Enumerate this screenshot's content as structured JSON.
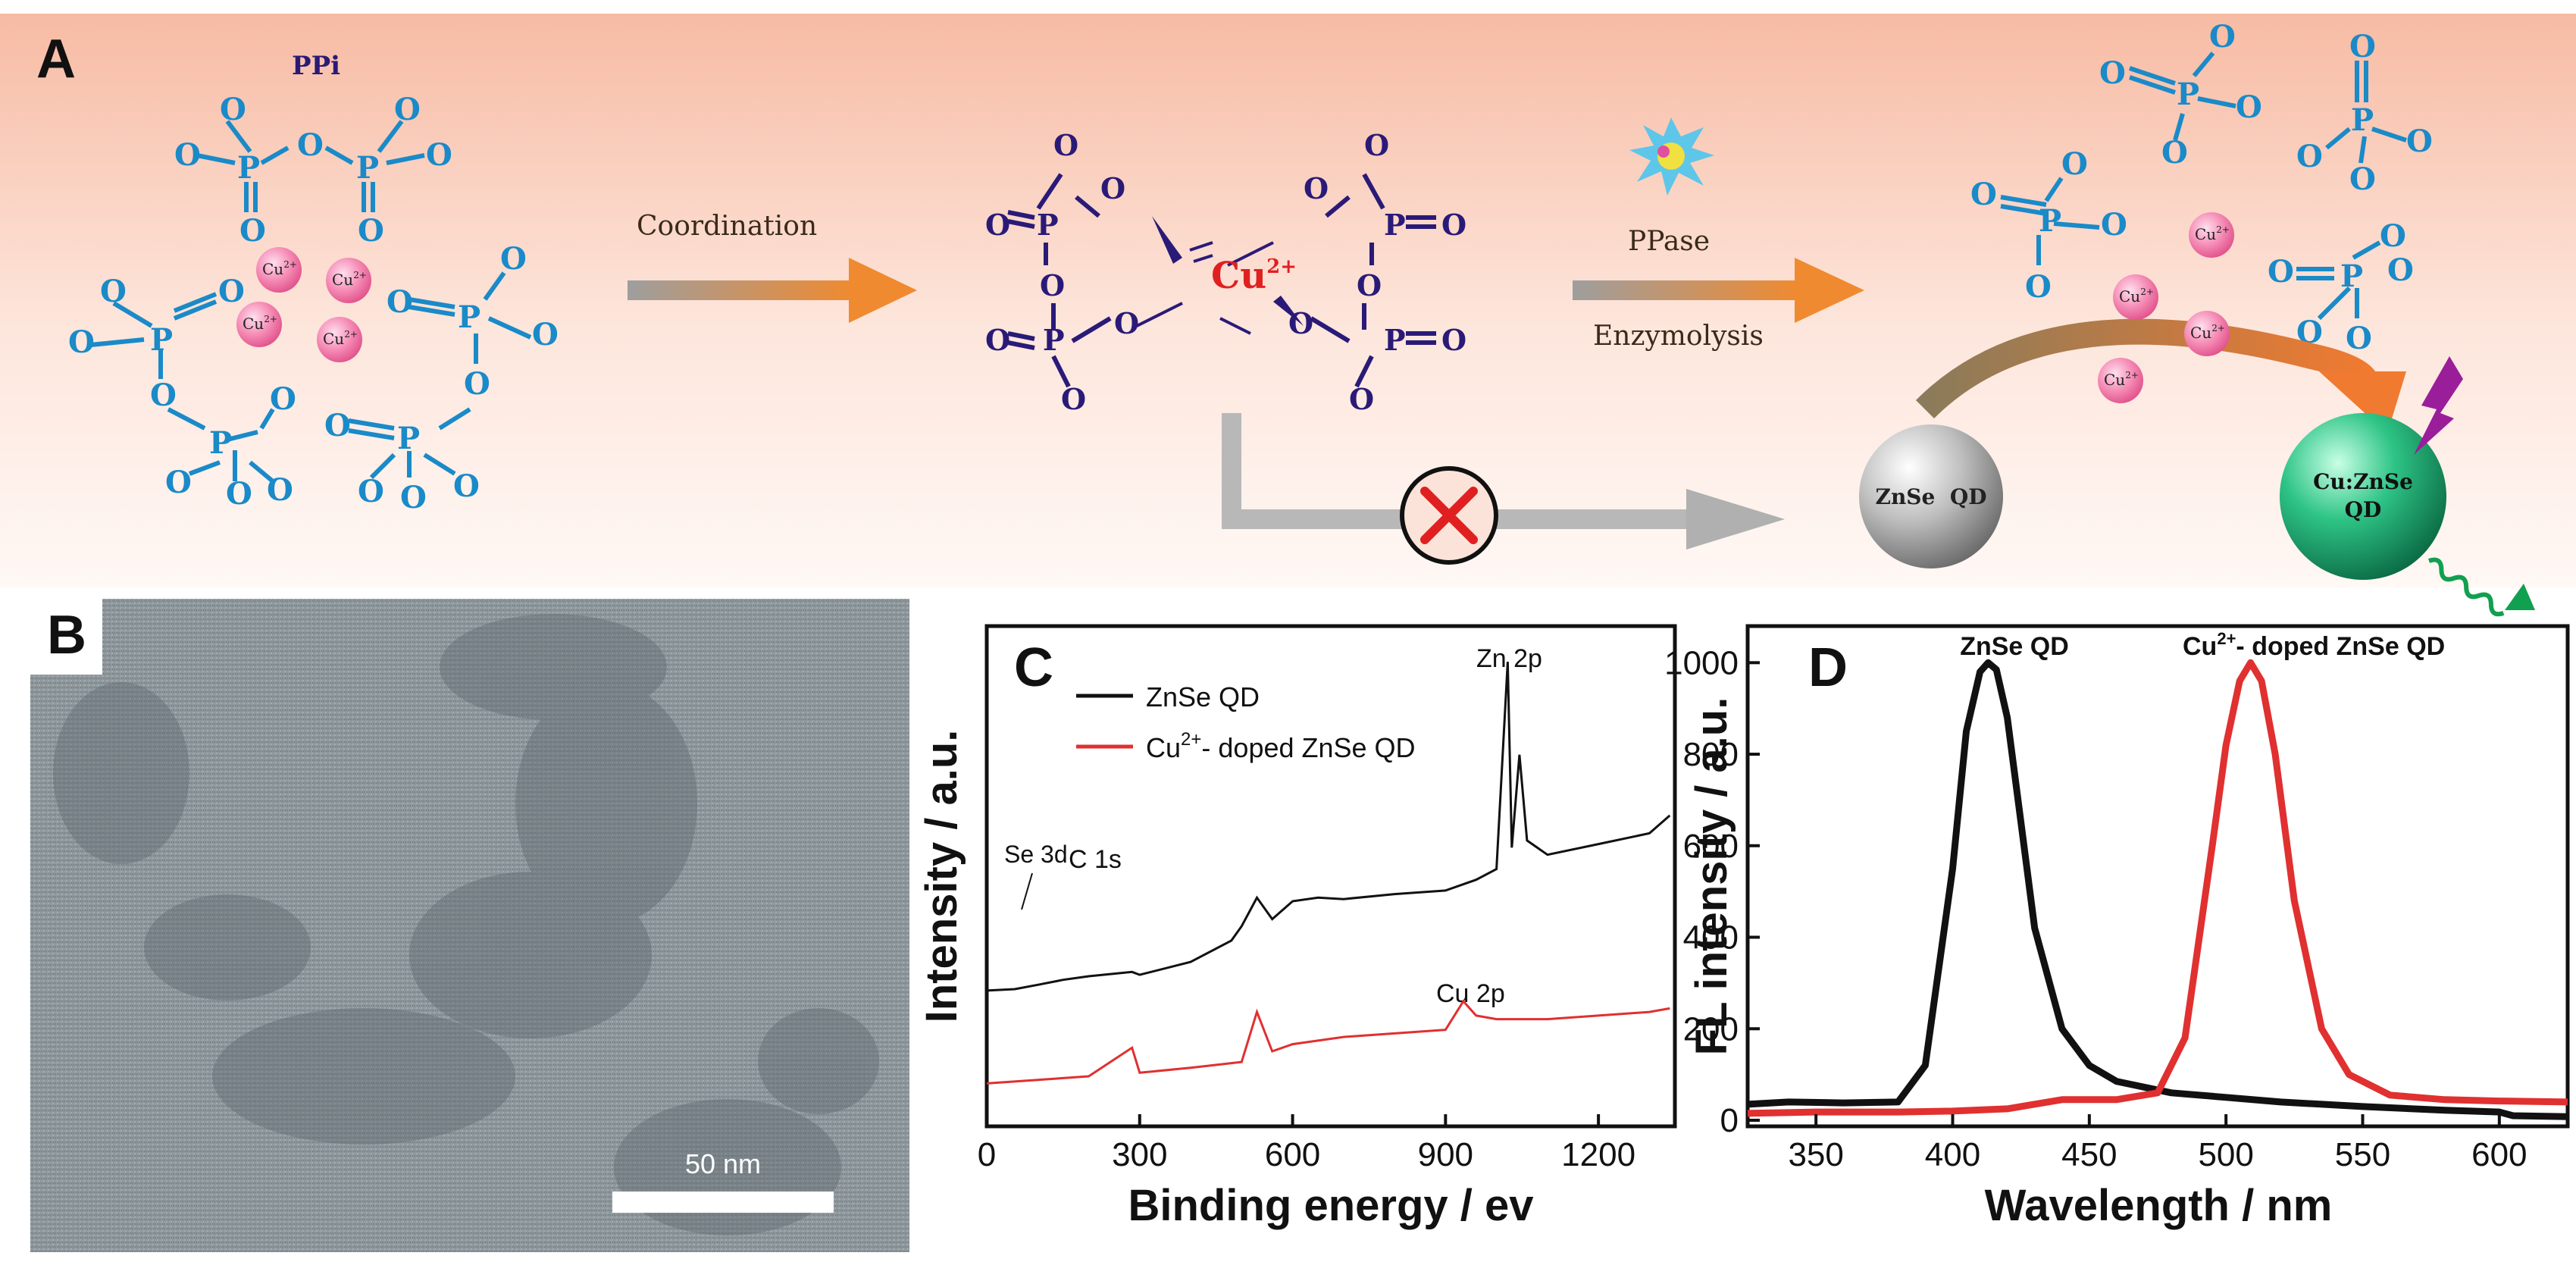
{
  "panel_a": {
    "label": "A",
    "ppi_label": "PPi",
    "cu_ion": "Cu",
    "cu_charge": "2+",
    "p": "P",
    "o": "O",
    "coordination_label": "Coordination",
    "ppase_label": "PPase",
    "enzymolysis_label": "Enzymolysis",
    "znse_qd_label": "ZnSe  QD",
    "cuznse_line1": "Cu:ZnSe",
    "cuznse_line2": "QD",
    "colors": {
      "ppi": "#1a8ac8",
      "complex": "#2a1a78",
      "cu_red": "#e02020",
      "arrow_orange": "#f08a30",
      "bg_top": "#f7bba4"
    }
  },
  "panel_b": {
    "label": "B",
    "scale_bar": "50 nm"
  },
  "panel_c": {
    "label": "C",
    "legend": [
      "ZnSe QD",
      "Cu2+- doped ZnSe QD"
    ],
    "legend_cu_prefix": "Cu",
    "legend_cu_sup": "2+",
    "legend_cu_suffix": "- doped ZnSe QD",
    "annotations": [
      "Se 3d",
      "C 1s",
      "Zn 2p",
      "Cu 2p"
    ],
    "chart_data": {
      "type": "line",
      "title": "",
      "xlabel": "Binding energy / ev",
      "ylabel": "Intensity / a.u.",
      "xlim": [
        0,
        1350
      ],
      "x_ticks": [
        0,
        300,
        600,
        900,
        1200
      ],
      "series": [
        {
          "name": "ZnSe QD",
          "color": "#111111",
          "x": [
            0,
            55,
            100,
            150,
            200,
            285,
            300,
            400,
            480,
            500,
            530,
            560,
            600,
            650,
            700,
            800,
            900,
            960,
            1000,
            1022,
            1030,
            1045,
            1060,
            1100,
            1200,
            1300,
            1340
          ],
          "y": [
            0.3,
            0.32,
            0.38,
            0.45,
            0.5,
            0.56,
            0.52,
            0.7,
            1.0,
            1.2,
            1.6,
            1.3,
            1.55,
            1.6,
            1.58,
            1.65,
            1.7,
            1.85,
            2.0,
            4.9,
            2.3,
            3.6,
            2.4,
            2.2,
            2.35,
            2.5,
            2.75
          ]
        },
        {
          "name": "Cu2+- doped ZnSe QD",
          "color": "#e03030",
          "x": [
            0,
            100,
            200,
            285,
            300,
            400,
            500,
            530,
            560,
            600,
            700,
            800,
            900,
            935,
            960,
            1000,
            1100,
            1200,
            1300,
            1340
          ],
          "y": [
            -1.0,
            -0.95,
            -0.9,
            -0.5,
            -0.85,
            -0.78,
            -0.7,
            0.0,
            -0.55,
            -0.45,
            -0.35,
            -0.3,
            -0.25,
            0.15,
            -0.05,
            -0.1,
            -0.1,
            -0.05,
            0.0,
            0.05
          ]
        }
      ]
    }
  },
  "panel_d": {
    "label": "D",
    "peak_labels": [
      "ZnSe QD",
      "Cu2+- doped ZnSe QD"
    ],
    "peak2_prefix": "Cu",
    "peak2_sup": "2+",
    "peak2_suffix": "- doped ZnSe QD",
    "chart_data": {
      "type": "line",
      "title": "",
      "xlabel": "Wavelength / nm",
      "ylabel": "FL intensity / a.u.",
      "xlim": [
        325,
        625
      ],
      "ylim": [
        0,
        1080
      ],
      "x_ticks": [
        350,
        400,
        450,
        500,
        550,
        600
      ],
      "y_ticks": [
        0,
        200,
        400,
        600,
        800,
        1000
      ],
      "series": [
        {
          "name": "ZnSe QD",
          "color": "#111111",
          "x": [
            325,
            340,
            360,
            380,
            390,
            400,
            405,
            410,
            413,
            416,
            420,
            425,
            430,
            440,
            450,
            460,
            480,
            500,
            520,
            550,
            580,
            600,
            605,
            625
          ],
          "y": [
            35,
            40,
            38,
            40,
            120,
            550,
            850,
            980,
            1000,
            985,
            880,
            650,
            420,
            200,
            120,
            85,
            60,
            50,
            40,
            30,
            22,
            18,
            10,
            8
          ]
        },
        {
          "name": "Cu2+- doped ZnSe QD",
          "color": "#e03030",
          "x": [
            325,
            350,
            380,
            400,
            420,
            440,
            460,
            475,
            485,
            495,
            500,
            505,
            509,
            513,
            518,
            525,
            535,
            545,
            560,
            580,
            600,
            625
          ],
          "y": [
            15,
            18,
            18,
            20,
            25,
            45,
            45,
            60,
            180,
            600,
            820,
            960,
            1000,
            960,
            800,
            480,
            200,
            100,
            55,
            45,
            42,
            40
          ]
        }
      ]
    }
  }
}
